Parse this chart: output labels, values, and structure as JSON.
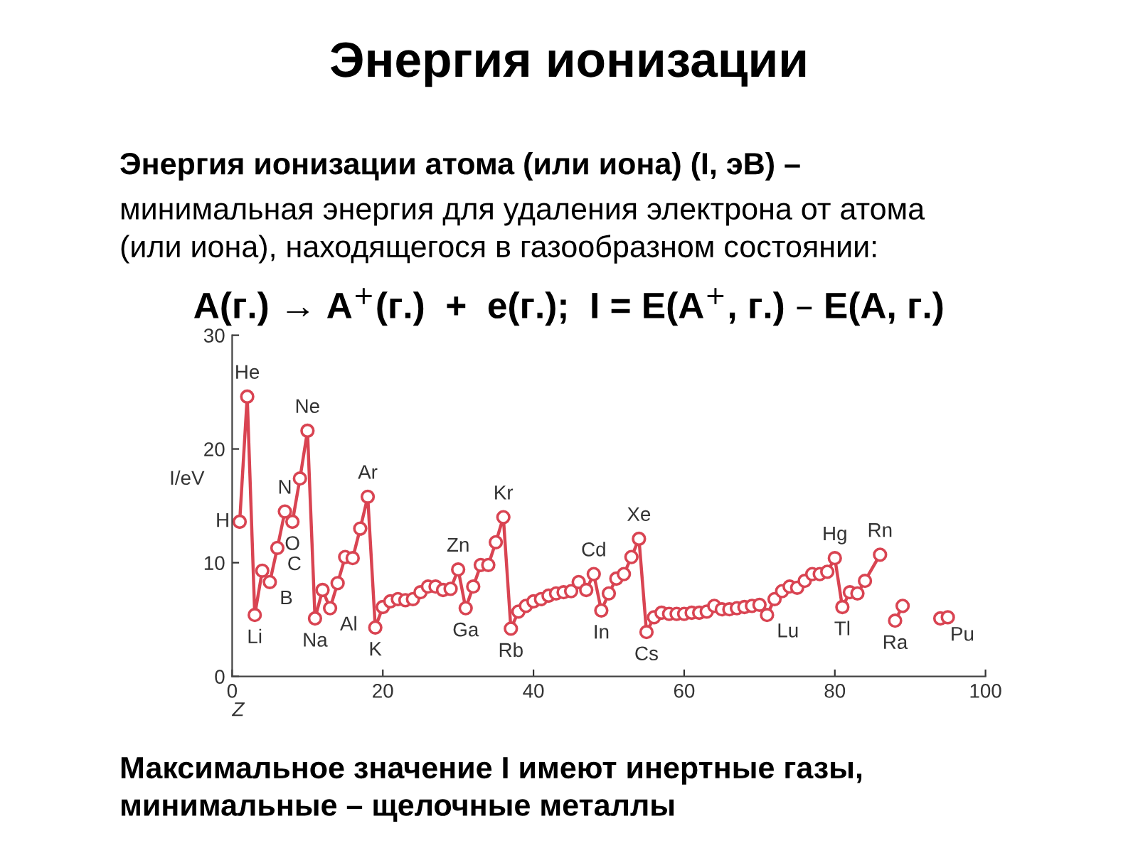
{
  "chart_data": {
    "type": "line",
    "title": "Энергия ионизации",
    "subtitle": "Энергия ионизации атома (или иона) (I, эВ) –",
    "xlabel": "Z",
    "ylabel": "I/eV",
    "annotations": [
      "минимальная энергия для удаления электрона от атома\n(или иона), находящегося в газообразном состоянии:",
      "A(г.) → A$^{+}$(г.)  +  e(г.);  I = E(A$^{+}$, г.) – E(A, г.)",
      "Максимальное значение I имеют инертные газы,\nминимальные – щелочные металлы",
      {
        "text": "H",
        "x": 1,
        "y": 13.6
      },
      {
        "text": "He",
        "x": 2,
        "y": 24.6
      },
      {
        "text": "Li",
        "x": 3,
        "y": 5.4
      },
      {
        "text": "B",
        "x": 5,
        "y": 8.3
      },
      {
        "text": "C",
        "x": 6,
        "y": 11.3
      },
      {
        "text": "N",
        "x": 7,
        "y": 14.5
      },
      {
        "text": "O",
        "x": 8,
        "y": 13.6
      },
      {
        "text": "Ne",
        "x": 10,
        "y": 21.6
      },
      {
        "text": "Na",
        "x": 11,
        "y": 5.1
      },
      {
        "text": "Al",
        "x": 13,
        "y": 6.0
      },
      {
        "text": "Ar",
        "x": 18,
        "y": 15.8
      },
      {
        "text": "K",
        "x": 19,
        "y": 4.3
      },
      {
        "text": "Zn",
        "x": 30,
        "y": 9.4
      },
      {
        "text": "Ga",
        "x": 31,
        "y": 6.0
      },
      {
        "text": "Kr",
        "x": 36,
        "y": 14.0
      },
      {
        "text": "Rb",
        "x": 37,
        "y": 4.2
      },
      {
        "text": "Cd",
        "x": 48,
        "y": 9.0
      },
      {
        "text": "In",
        "x": 49,
        "y": 5.8
      },
      {
        "text": "Xe",
        "x": 54,
        "y": 12.1
      },
      {
        "text": "Cs",
        "x": 55,
        "y": 3.9
      },
      {
        "text": "Lu",
        "x": 71,
        "y": 5.4
      },
      {
        "text": "Hg",
        "x": 80,
        "y": 10.4
      },
      {
        "text": "Tl",
        "x": 81,
        "y": 6.1
      },
      {
        "text": "Rn",
        "x": 86,
        "y": 10.7
      },
      {
        "text": "Ra",
        "x": 88,
        "y": 4.9
      },
      {
        "text": "Pu",
        "x": 94,
        "y": 5.1
      }
    ],
    "series": [
      {
        "color": "#d94452",
        "x": [
          1,
          2,
          3,
          4,
          5,
          6,
          7,
          8,
          9,
          10,
          11,
          12,
          13,
          14,
          15,
          16,
          17,
          18,
          19,
          20,
          21,
          22,
          23,
          24,
          25,
          26,
          27,
          28,
          29,
          30,
          31,
          32,
          33,
          34,
          35,
          36,
          37,
          38,
          39,
          40,
          41,
          42,
          43,
          44,
          45,
          46,
          47,
          48,
          49,
          50,
          51,
          52,
          53,
          54,
          55,
          56,
          57,
          58,
          59,
          60,
          61,
          62,
          63,
          64,
          65,
          66,
          67,
          68,
          69,
          70,
          71,
          72,
          73,
          74,
          75,
          76,
          77,
          78,
          79,
          80,
          81,
          82,
          83,
          84,
          86,
          87,
          88,
          89,
          90,
          94,
          95
        ],
        "values": [
          13.6,
          24.6,
          5.4,
          9.3,
          8.3,
          11.3,
          14.5,
          13.6,
          17.4,
          21.6,
          5.1,
          7.6,
          6.0,
          8.2,
          10.5,
          10.4,
          13.0,
          15.8,
          4.3,
          6.1,
          6.6,
          6.8,
          6.7,
          6.8,
          7.4,
          7.9,
          7.9,
          7.6,
          7.7,
          9.4,
          6.0,
          7.9,
          9.8,
          9.8,
          11.8,
          14.0,
          4.2,
          5.7,
          6.2,
          6.6,
          6.8,
          7.1,
          7.3,
          7.4,
          7.5,
          8.3,
          7.6,
          9.0,
          5.8,
          7.3,
          8.6,
          9.0,
          10.5,
          12.1,
          3.9,
          5.2,
          5.6,
          5.5,
          5.5,
          5.5,
          5.6,
          5.6,
          5.7,
          6.2,
          5.9,
          5.9,
          6.0,
          6.1,
          6.2,
          6.3,
          5.4,
          6.8,
          7.5,
          7.9,
          7.8,
          8.4,
          9.0,
          9.0,
          9.2,
          10.4,
          6.1,
          7.4,
          7.3,
          8.4,
          10.7,
          null,
          4.9,
          6.2,
          null,
          5.1,
          5.2
        ]
      }
    ],
    "xlim": [
      0,
      100
    ],
    "xticks": [
      0,
      20,
      40,
      60,
      80,
      100
    ],
    "ylim": [
      0,
      30
    ],
    "yticks": [
      0,
      10,
      20,
      30
    ],
    "marker": "circle",
    "line_style": "solid",
    "grid": false,
    "legend": false
  }
}
